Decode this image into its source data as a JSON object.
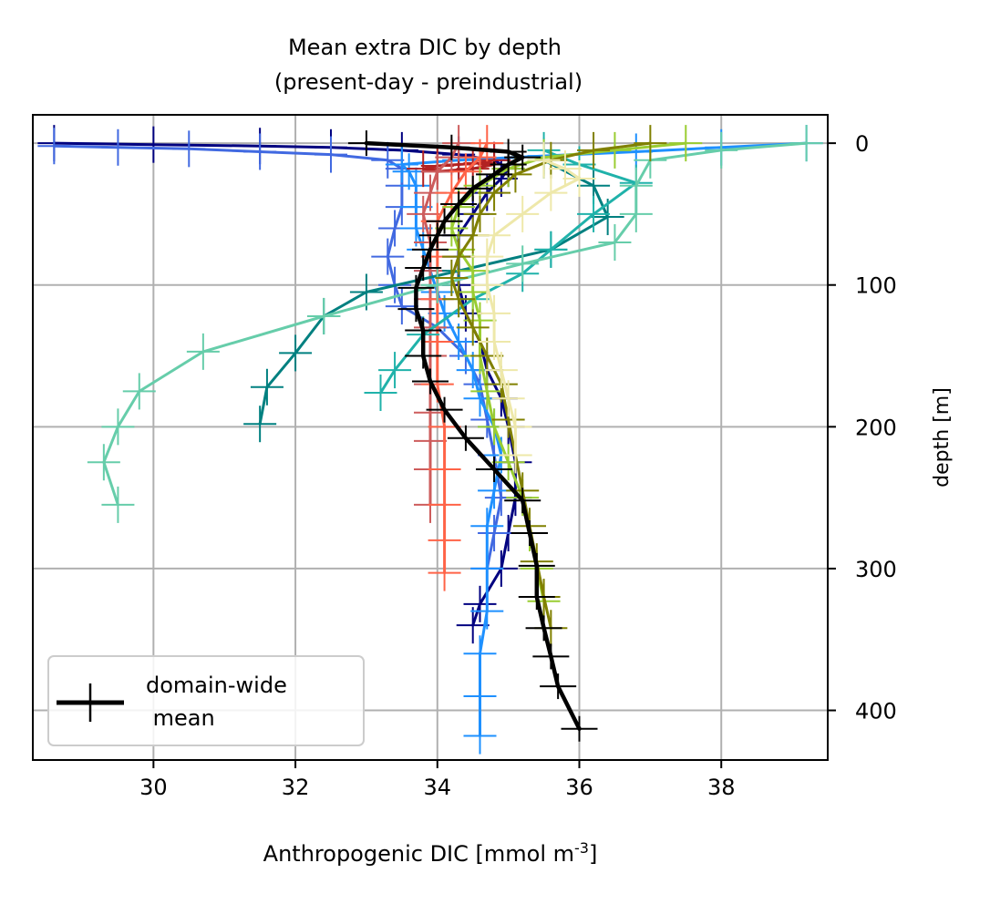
{
  "chart_data": {
    "type": "line",
    "title": "Mean extra DIC by depth\n(present-day - preindustrial)",
    "xlabel": "Anthropogenic DIC [mmol m$^{-3}$]",
    "ylabel": "depth [m]",
    "xlim": [
      28.3,
      39.5
    ],
    "ylim": [
      435,
      -20
    ],
    "y_inverted": true,
    "y_axis_side": "right",
    "x_ticks": [
      "30",
      "32",
      "34",
      "36",
      "38"
    ],
    "y_ticks": [
      "0",
      "100",
      "200",
      "300",
      "400"
    ],
    "grid": true,
    "markers": "error-bar crosses",
    "legend": {
      "placement": "lower-left",
      "entries": [
        "domain-wide\n mean"
      ]
    },
    "series": [
      {
        "name": "domain-wide\n mean",
        "color": "#000000",
        "width": 4.5,
        "points": [
          [
            33.0,
            0
          ],
          [
            34.2,
            3
          ],
          [
            35.0,
            6
          ],
          [
            35.2,
            10
          ],
          [
            35.0,
            15
          ],
          [
            34.8,
            22
          ],
          [
            34.5,
            32
          ],
          [
            34.3,
            43
          ],
          [
            34.1,
            55
          ],
          [
            34.0,
            65
          ],
          [
            33.9,
            75
          ],
          [
            33.8,
            88
          ],
          [
            33.7,
            102
          ],
          [
            33.7,
            117
          ],
          [
            33.8,
            132
          ],
          [
            33.8,
            150
          ],
          [
            33.9,
            168
          ],
          [
            34.1,
            188
          ],
          [
            34.4,
            208
          ],
          [
            34.8,
            230
          ],
          [
            35.2,
            252
          ],
          [
            35.3,
            275
          ],
          [
            35.4,
            298
          ],
          [
            35.4,
            320
          ],
          [
            35.5,
            342
          ],
          [
            35.6,
            362
          ],
          [
            35.7,
            383
          ],
          [
            36.0,
            413
          ]
        ]
      },
      {
        "color": "#000080",
        "width": 3,
        "points": [
          [
            28.6,
            0
          ],
          [
            30.0,
            1
          ],
          [
            31.5,
            2
          ],
          [
            32.5,
            3
          ],
          [
            33.5,
            5
          ],
          [
            34.3,
            8
          ],
          [
            34.8,
            12
          ],
          [
            35.0,
            18
          ],
          [
            34.9,
            25
          ],
          [
            34.7,
            35
          ],
          [
            34.5,
            50
          ],
          [
            34.3,
            65
          ],
          [
            34.3,
            80
          ],
          [
            34.3,
            100
          ],
          [
            34.4,
            120
          ],
          [
            34.6,
            140
          ],
          [
            34.7,
            160
          ],
          [
            34.9,
            180
          ],
          [
            35.0,
            200
          ],
          [
            35.1,
            225
          ],
          [
            35.1,
            250
          ],
          [
            35.0,
            275
          ],
          [
            34.9,
            300
          ],
          [
            34.6,
            325
          ],
          [
            34.5,
            340
          ]
        ]
      },
      {
        "color": "#4169e1",
        "width": 3,
        "points": [
          [
            28.6,
            2
          ],
          [
            29.5,
            3
          ],
          [
            30.5,
            4
          ],
          [
            31.5,
            6
          ],
          [
            32.5,
            8
          ],
          [
            33.3,
            12
          ],
          [
            33.5,
            18
          ],
          [
            33.5,
            30
          ],
          [
            33.5,
            45
          ],
          [
            33.4,
            60
          ],
          [
            33.3,
            80
          ],
          [
            33.4,
            100
          ],
          [
            33.5,
            115
          ],
          [
            34.0,
            130
          ],
          [
            34.4,
            150
          ],
          [
            34.6,
            170
          ],
          [
            34.7,
            195
          ],
          [
            34.8,
            220
          ],
          [
            34.9,
            250
          ],
          [
            34.8,
            275
          ],
          [
            34.7,
            300
          ]
        ]
      },
      {
        "color": "#1e90ff",
        "width": 3,
        "points": [
          [
            39.2,
            0
          ],
          [
            38.0,
            3
          ],
          [
            36.8,
            6
          ],
          [
            35.5,
            9
          ],
          [
            34.3,
            12
          ],
          [
            33.5,
            15
          ],
          [
            33.6,
            20
          ],
          [
            33.7,
            30
          ],
          [
            33.7,
            45
          ],
          [
            33.7,
            60
          ],
          [
            33.8,
            75
          ],
          [
            33.9,
            90
          ],
          [
            34.0,
            105
          ],
          [
            34.1,
            120
          ],
          [
            34.3,
            140
          ],
          [
            34.5,
            160
          ],
          [
            34.6,
            180
          ],
          [
            34.8,
            200
          ],
          [
            34.9,
            220
          ],
          [
            34.8,
            245
          ],
          [
            34.7,
            270
          ],
          [
            34.7,
            300
          ],
          [
            34.7,
            330
          ],
          [
            34.6,
            360
          ],
          [
            34.6,
            390
          ],
          [
            34.6,
            418
          ]
        ]
      },
      {
        "color": "#b22222",
        "width": 3,
        "points": [
          [
            34.8,
            12
          ],
          [
            34.6,
            14
          ],
          [
            34.3,
            15
          ],
          [
            34.0,
            16
          ],
          [
            33.8,
            18
          ],
          [
            34.0,
            20
          ],
          [
            34.5,
            18
          ],
          [
            34.8,
            15
          ]
        ]
      },
      {
        "color": "#cd5c5c",
        "width": 3,
        "points": [
          [
            34.3,
            0
          ],
          [
            34.2,
            10
          ],
          [
            34.0,
            20
          ],
          [
            33.9,
            35
          ],
          [
            33.8,
            50
          ],
          [
            33.9,
            70
          ],
          [
            33.9,
            90
          ],
          [
            33.9,
            110
          ],
          [
            33.9,
            130
          ],
          [
            33.9,
            150
          ],
          [
            33.9,
            170
          ],
          [
            33.9,
            190
          ],
          [
            33.9,
            210
          ],
          [
            33.9,
            230
          ],
          [
            33.9,
            255
          ]
        ]
      },
      {
        "color": "#ff6347",
        "width": 3,
        "points": [
          [
            34.7,
            0
          ],
          [
            34.6,
            10
          ],
          [
            34.4,
            20
          ],
          [
            34.2,
            35
          ],
          [
            34.0,
            55
          ],
          [
            34.0,
            80
          ],
          [
            34.0,
            110
          ],
          [
            34.0,
            140
          ],
          [
            34.0,
            170
          ],
          [
            34.1,
            200
          ],
          [
            34.1,
            230
          ],
          [
            34.1,
            255
          ],
          [
            34.1,
            280
          ],
          [
            34.1,
            303
          ]
        ]
      },
      {
        "color": "#008080",
        "width": 3,
        "points": [
          [
            35.5,
            12
          ],
          [
            36.2,
            30
          ],
          [
            36.4,
            52
          ],
          [
            35.6,
            75
          ],
          [
            34.3,
            90
          ],
          [
            33.0,
            105
          ],
          [
            32.4,
            122
          ],
          [
            32.0,
            148
          ],
          [
            31.6,
            172
          ],
          [
            31.5,
            198
          ]
        ]
      },
      {
        "color": "#20b2aa",
        "width": 3,
        "points": [
          [
            35.5,
            5
          ],
          [
            36.0,
            15
          ],
          [
            36.8,
            28
          ],
          [
            36.2,
            50
          ],
          [
            35.6,
            75
          ],
          [
            35.2,
            92
          ],
          [
            34.5,
            110
          ],
          [
            33.8,
            135
          ],
          [
            33.4,
            160
          ],
          [
            33.2,
            176
          ]
        ]
      },
      {
        "color": "#66cdaa",
        "width": 3,
        "points": [
          [
            39.2,
            0
          ],
          [
            38.0,
            5
          ],
          [
            37.0,
            12
          ],
          [
            36.8,
            30
          ],
          [
            36.8,
            50
          ],
          [
            36.5,
            70
          ],
          [
            35.2,
            85
          ],
          [
            34.0,
            100
          ],
          [
            32.4,
            122
          ],
          [
            30.7,
            147
          ],
          [
            29.8,
            175
          ],
          [
            29.5,
            200
          ],
          [
            29.3,
            225
          ],
          [
            29.5,
            255
          ]
        ]
      },
      {
        "color": "#9acd32",
        "width": 3,
        "points": [
          [
            37.5,
            0
          ],
          [
            36.5,
            5
          ],
          [
            35.5,
            10
          ],
          [
            35.0,
            18
          ],
          [
            34.6,
            30
          ],
          [
            34.3,
            45
          ],
          [
            34.2,
            60
          ],
          [
            34.3,
            75
          ],
          [
            34.5,
            90
          ],
          [
            34.5,
            105
          ],
          [
            34.6,
            125
          ],
          [
            34.6,
            150
          ],
          [
            34.7,
            175
          ],
          [
            34.8,
            200
          ],
          [
            35.0,
            225
          ],
          [
            35.2,
            250
          ],
          [
            35.3,
            275
          ],
          [
            35.4,
            300
          ],
          [
            35.5,
            323
          ]
        ]
      },
      {
        "color": "#808000",
        "width": 3,
        "points": [
          [
            37.0,
            0
          ],
          [
            36.2,
            5
          ],
          [
            35.6,
            12
          ],
          [
            35.1,
            22
          ],
          [
            34.8,
            35
          ],
          [
            34.6,
            50
          ],
          [
            34.5,
            65
          ],
          [
            34.3,
            80
          ],
          [
            34.2,
            95
          ],
          [
            34.3,
            110
          ],
          [
            34.5,
            130
          ],
          [
            34.7,
            150
          ],
          [
            34.9,
            170
          ],
          [
            35.0,
            195
          ],
          [
            35.1,
            220
          ],
          [
            35.2,
            245
          ],
          [
            35.3,
            270
          ],
          [
            35.4,
            295
          ],
          [
            35.5,
            320
          ],
          [
            35.6,
            342
          ]
        ]
      },
      {
        "color": "#eee8aa",
        "width": 3,
        "points": [
          [
            35.5,
            12
          ],
          [
            35.8,
            18
          ],
          [
            36.0,
            25
          ],
          [
            35.6,
            35
          ],
          [
            35.2,
            50
          ],
          [
            34.8,
            65
          ],
          [
            34.7,
            80
          ],
          [
            34.7,
            100
          ],
          [
            34.8,
            120
          ],
          [
            34.8,
            140
          ],
          [
            34.9,
            160
          ],
          [
            35.0,
            180
          ],
          [
            35.1,
            200
          ],
          [
            35.1,
            220
          ]
        ]
      }
    ]
  }
}
